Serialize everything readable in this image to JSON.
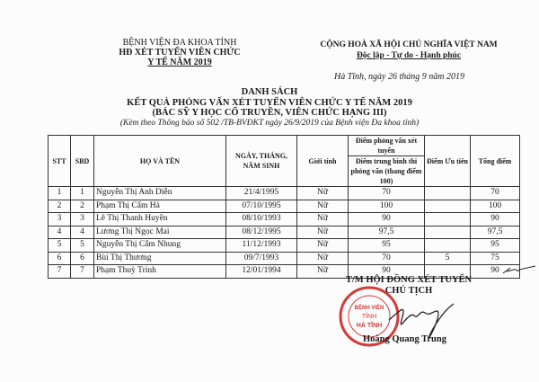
{
  "header_left": {
    "line1": "BỆNH VIỆN ĐA KHOA TỈNH",
    "line2": "HĐ XÉT TUYỂN VIÊN CHỨC",
    "line3": "Y TẾ NĂM 2019"
  },
  "header_right": {
    "line1": "CỘNG HOÀ XÃ HỘI CHỦ NGHĨA VIỆT NAM",
    "line2": "Độc lập - Tự do - Hạnh phúc",
    "date": "Hà Tĩnh, ngày 26 tháng 9 năm 2019"
  },
  "title": {
    "line1": "DANH SÁCH",
    "line2": "KẾT QUẢ PHỎNG VẤN XÉT TUYỂN VIÊN CHỨC Y TẾ NĂM 2019",
    "line3": "(BÁC SỸ Y HỌC CỔ TRUYỀN, VIÊN CHỨC HẠNG III)",
    "note": "(Kèm theo Thông báo số 502 /TB-BVĐKT ngày 26/9/2019 của Bệnh viện Đa khoa tỉnh)"
  },
  "table": {
    "headers": {
      "stt": "STT",
      "sbd": "SBD",
      "name": "HỌ VÀ TÊN",
      "dob": "NGÀY, THÁNG, NĂM SINH",
      "gender": "Giới tính",
      "interview": "Điểm phỏng vấn xét tuyển",
      "avg": "Điểm trung bình thi phỏng vấn (thang điểm 100)",
      "priority": "Điểm Ưu tiên",
      "total": "Tổng điểm"
    },
    "rows": [
      [
        "1",
        "1",
        "Nguyễn Thị Anh Diễn",
        "21/4/1995",
        "Nữ",
        "70",
        "",
        "70"
      ],
      [
        "2",
        "2",
        "Phạm Thị Cẩm Hà",
        "07/10/1995",
        "Nữ",
        "100",
        "",
        "100"
      ],
      [
        "3",
        "3",
        "Lê Thị Thanh Huyền",
        "08/10/1993",
        "Nữ",
        "90",
        "",
        "90"
      ],
      [
        "4",
        "4",
        "Lương Thị Ngọc Mai",
        "08/12/1995",
        "Nữ",
        "97,5",
        "",
        "97,5"
      ],
      [
        "5",
        "5",
        "Nguyễn Thị Cẩm Nhung",
        "11/12/1993",
        "Nữ",
        "95",
        "",
        "95"
      ],
      [
        "6",
        "6",
        "Bùi Thị Thương",
        "09/7/1993",
        "Nữ",
        "70",
        "5",
        "75"
      ],
      [
        "7",
        "7",
        "Phạm Thuỳ Trinh",
        "12/01/1994",
        "Nữ",
        "90",
        "",
        "90"
      ]
    ]
  },
  "signature": {
    "line1": "T/M HỘI ĐỒNG XÉT TUYỂN",
    "line2": "CHỦ TỊCH",
    "name": "Hoàng Quang Trung",
    "stamp_text": "BỆNH VIỆN TỈNH HÀ TĨNH"
  },
  "colors": {
    "stamp": "#d63a3a",
    "ink": "#1a1a1a"
  }
}
